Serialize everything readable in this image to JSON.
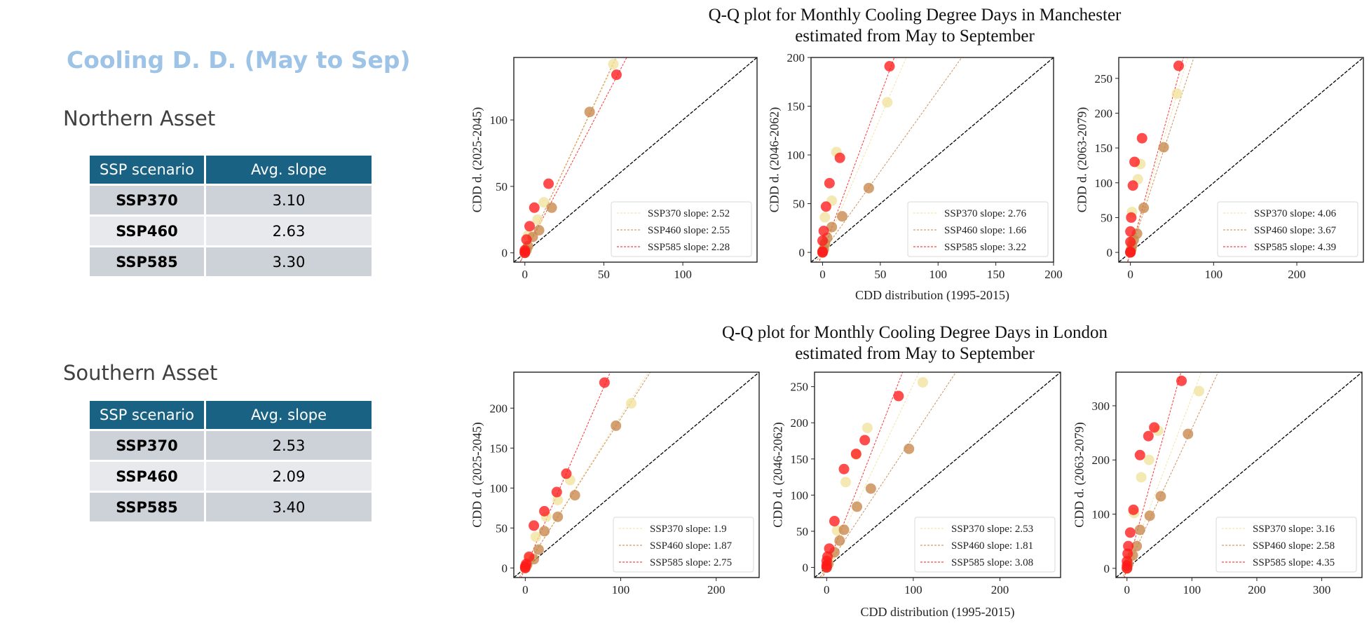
{
  "slide": {
    "title": "Cooling D. D. (May to Sep)"
  },
  "assets": [
    {
      "name": "Northern Asset",
      "table": {
        "headers": [
          "SSP scenario",
          "Avg. slope"
        ],
        "rows": [
          {
            "scenario": "SSP370",
            "slope": "3.10"
          },
          {
            "scenario": "SSP460",
            "slope": "2.63"
          },
          {
            "scenario": "SSP585",
            "slope": "3.30"
          }
        ]
      }
    },
    {
      "name": "Southern Asset",
      "table": {
        "headers": [
          "SSP scenario",
          "Avg. slope"
        ],
        "rows": [
          {
            "scenario": "SSP370",
            "slope": "2.53"
          },
          {
            "scenario": "SSP460",
            "slope": "2.09"
          },
          {
            "scenario": "SSP585",
            "slope": "3.40"
          }
        ]
      }
    }
  ],
  "figures": [
    {
      "title_line1": "Q-Q plot for Monthly Cooling Degree Days in Manchester",
      "title_line2": "estimated from May to September",
      "xlabel": "CDD distribution (1995-2015)"
    },
    {
      "title_line1": "Q-Q plot for Monthly Cooling Degree Days in London",
      "title_line2": "estimated from May to September",
      "xlabel": "CDD distribution (1995-2015)"
    }
  ],
  "series_colors": {
    "SSP370": "#f0e09a",
    "SSP460": "#c8874a",
    "SSP585": "#ff1a1a",
    "reference": "#000000"
  },
  "chart_data": [
    {
      "type": "scatter",
      "city": "Manchester",
      "ylabel": "CDD d. (2025-2045)",
      "xlim": [
        -7,
        147
      ],
      "ylim": [
        -7,
        147
      ],
      "xticks": [
        0,
        50,
        100
      ],
      "yticks": [
        0,
        50,
        100
      ],
      "reference_line": "y = x",
      "series": [
        {
          "name": "SSP370",
          "legend": "SSP370 slope: 2.52",
          "slope": 2.52,
          "points": [
            [
              0,
              0
            ],
            [
              0,
              1
            ],
            [
              1,
              3
            ],
            [
              2,
              13
            ],
            [
              8,
              25
            ],
            [
              12,
              38
            ],
            [
              56,
              142
            ]
          ]
        },
        {
          "name": "SSP460",
          "legend": "SSP460 slope: 2.55",
          "slope": 2.55,
          "points": [
            [
              0,
              0
            ],
            [
              1,
              2
            ],
            [
              2,
              5
            ],
            [
              5,
              12
            ],
            [
              9,
              17
            ],
            [
              17,
              34
            ],
            [
              41,
              106
            ]
          ]
        },
        {
          "name": "SSP585",
          "legend": "SSP585 slope: 2.28",
          "slope": 2.28,
          "points": [
            [
              0,
              0
            ],
            [
              0,
              1
            ],
            [
              0,
              2
            ],
            [
              1,
              10
            ],
            [
              3,
              20
            ],
            [
              6,
              34
            ],
            [
              15,
              52
            ],
            [
              58,
              134
            ]
          ]
        }
      ]
    },
    {
      "type": "scatter",
      "city": "Manchester",
      "ylabel": "CDD d. (2046-2062)",
      "xlim": [
        -10,
        200
      ],
      "ylim": [
        -10,
        200
      ],
      "xticks": [
        0,
        50,
        100,
        150,
        200
      ],
      "yticks": [
        0,
        50,
        100,
        150,
        200
      ],
      "reference_line": "y = x",
      "series": [
        {
          "name": "SSP370",
          "legend": "SSP370 slope: 2.76",
          "slope": 2.76,
          "points": [
            [
              0,
              0
            ],
            [
              1,
              3
            ],
            [
              2,
              8
            ],
            [
              2,
              36
            ],
            [
              8,
              53
            ],
            [
              12,
              103
            ],
            [
              56,
              154
            ]
          ]
        },
        {
          "name": "SSP460",
          "legend": "SSP460 slope: 1.66",
          "slope": 1.66,
          "points": [
            [
              0,
              0
            ],
            [
              1,
              3
            ],
            [
              2,
              9
            ],
            [
              4,
              15
            ],
            [
              8,
              26
            ],
            [
              17,
              37
            ],
            [
              40,
              66
            ]
          ]
        },
        {
          "name": "SSP585",
          "legend": "SSP585 slope: 3.22",
          "slope": 3.22,
          "points": [
            [
              0,
              0
            ],
            [
              0,
              1
            ],
            [
              0,
              12
            ],
            [
              1,
              22
            ],
            [
              3,
              47
            ],
            [
              6,
              71
            ],
            [
              15,
              97
            ],
            [
              58,
              191
            ]
          ]
        }
      ]
    },
    {
      "type": "scatter",
      "city": "Manchester",
      "ylabel": "CDD d. (2063-2079)",
      "xlim": [
        -14,
        280
      ],
      "ylim": [
        -14,
        280
      ],
      "xticks": [
        0,
        100,
        200
      ],
      "yticks": [
        0,
        50,
        100,
        150,
        200,
        250
      ],
      "reference_line": "y = x",
      "series": [
        {
          "name": "SSP370",
          "legend": "SSP370 slope: 4.06",
          "slope": 4.06,
          "points": [
            [
              0,
              0
            ],
            [
              1,
              5
            ],
            [
              2,
              16
            ],
            [
              2,
              58
            ],
            [
              9,
              105
            ],
            [
              12,
              127
            ],
            [
              56,
              228
            ]
          ]
        },
        {
          "name": "SSP460",
          "legend": "SSP460 slope: 3.67",
          "slope": 3.67,
          "points": [
            [
              0,
              0
            ],
            [
              1,
              4
            ],
            [
              2,
              10
            ],
            [
              4,
              18
            ],
            [
              8,
              27
            ],
            [
              16,
              64
            ],
            [
              40,
              151
            ]
          ]
        },
        {
          "name": "SSP585",
          "legend": "SSP585 slope: 4.39",
          "slope": 4.39,
          "points": [
            [
              0,
              0
            ],
            [
              0,
              1
            ],
            [
              0,
              15
            ],
            [
              0,
              30
            ],
            [
              1,
              50
            ],
            [
              3,
              96
            ],
            [
              5,
              130
            ],
            [
              14,
              164
            ],
            [
              58,
              268
            ]
          ]
        }
      ]
    },
    {
      "type": "scatter",
      "city": "London",
      "ylabel": "CDD d. (2025-2045)",
      "xlim": [
        -12,
        245
      ],
      "ylim": [
        -12,
        245
      ],
      "xticks": [
        0,
        100,
        200
      ],
      "yticks": [
        0,
        50,
        100,
        150,
        200
      ],
      "reference_line": "y = x",
      "series": [
        {
          "name": "SSP370",
          "legend": "SSP370 slope: 1.9",
          "slope": 1.9,
          "points": [
            [
              0,
              0
            ],
            [
              1,
              3
            ],
            [
              4,
              12
            ],
            [
              11,
              39
            ],
            [
              22,
              64
            ],
            [
              34,
              85
            ],
            [
              47,
              110
            ],
            [
              111,
              206
            ]
          ]
        },
        {
          "name": "SSP460",
          "legend": "SSP460 slope: 1.87",
          "slope": 1.87,
          "points": [
            [
              0,
              0
            ],
            [
              2,
              4
            ],
            [
              9,
              11
            ],
            [
              14,
              23
            ],
            [
              20,
              46
            ],
            [
              34,
              64
            ],
            [
              52,
              91
            ],
            [
              95,
              178
            ]
          ]
        },
        {
          "name": "SSP585",
          "legend": "SSP585 slope: 2.75",
          "slope": 2.75,
          "points": [
            [
              0,
              0
            ],
            [
              0,
              2
            ],
            [
              1,
              5
            ],
            [
              4,
              14
            ],
            [
              9,
              53
            ],
            [
              20,
              71
            ],
            [
              33,
              95
            ],
            [
              43,
              118
            ],
            [
              83,
              232
            ]
          ]
        }
      ]
    },
    {
      "type": "scatter",
      "city": "London",
      "ylabel": "CDD d. (2046-2062)",
      "xlim": [
        -14,
        270
      ],
      "ylim": [
        -14,
        270
      ],
      "xticks": [
        0,
        100,
        200
      ],
      "yticks": [
        0,
        50,
        100,
        150,
        200,
        250
      ],
      "reference_line": "y = x",
      "series": [
        {
          "name": "SSP370",
          "legend": "SSP370 slope: 2.53",
          "slope": 2.53,
          "points": [
            [
              0,
              0
            ],
            [
              1,
              4
            ],
            [
              4,
              15
            ],
            [
              12,
              51
            ],
            [
              22,
              118
            ],
            [
              34,
              156
            ],
            [
              47,
              193
            ],
            [
              111,
              256
            ]
          ]
        },
        {
          "name": "SSP460",
          "legend": "SSP460 slope: 1.81",
          "slope": 1.81,
          "points": [
            [
              0,
              0
            ],
            [
              2,
              5
            ],
            [
              9,
              21
            ],
            [
              15,
              37
            ],
            [
              20,
              52
            ],
            [
              35,
              84
            ],
            [
              51,
              109
            ],
            [
              95,
              164
            ]
          ]
        },
        {
          "name": "SSP585",
          "legend": "SSP585 slope: 3.08",
          "slope": 3.08,
          "points": [
            [
              0,
              0
            ],
            [
              0,
              3
            ],
            [
              0,
              9
            ],
            [
              1,
              15
            ],
            [
              3,
              26
            ],
            [
              9,
              64
            ],
            [
              20,
              136
            ],
            [
              34,
              157
            ],
            [
              44,
              176
            ],
            [
              83,
              237
            ]
          ]
        }
      ]
    },
    {
      "type": "scatter",
      "city": "London",
      "ylabel": "CDD d. (2063-2079)",
      "xlim": [
        -17,
        362
      ],
      "ylim": [
        -17,
        362
      ],
      "xticks": [
        0,
        100,
        200,
        300
      ],
      "yticks": [
        0,
        100,
        200,
        300
      ],
      "reference_line": "y = x",
      "series": [
        {
          "name": "SSP370",
          "legend": "SSP370 slope: 3.16",
          "slope": 3.16,
          "points": [
            [
              0,
              0
            ],
            [
              1,
              5
            ],
            [
              4,
              20
            ],
            [
              11,
              102
            ],
            [
              22,
              168
            ],
            [
              34,
              200
            ],
            [
              48,
              254
            ],
            [
              111,
              327
            ]
          ]
        },
        {
          "name": "SSP460",
          "legend": "SSP460 slope: 2.58",
          "slope": 2.58,
          "points": [
            [
              0,
              0
            ],
            [
              2,
              8
            ],
            [
              9,
              24
            ],
            [
              15,
              41
            ],
            [
              20,
              71
            ],
            [
              35,
              97
            ],
            [
              52,
              133
            ],
            [
              94,
              248
            ]
          ]
        },
        {
          "name": "SSP585",
          "legend": "SSP585 slope: 4.35",
          "slope": 4.35,
          "points": [
            [
              0,
              0
            ],
            [
              0,
              5
            ],
            [
              0,
              13
            ],
            [
              1,
              27
            ],
            [
              2,
              41
            ],
            [
              5,
              66
            ],
            [
              10,
              108
            ],
            [
              20,
              209
            ],
            [
              33,
              244
            ],
            [
              42,
              260
            ],
            [
              84,
              346
            ]
          ]
        }
      ]
    }
  ]
}
